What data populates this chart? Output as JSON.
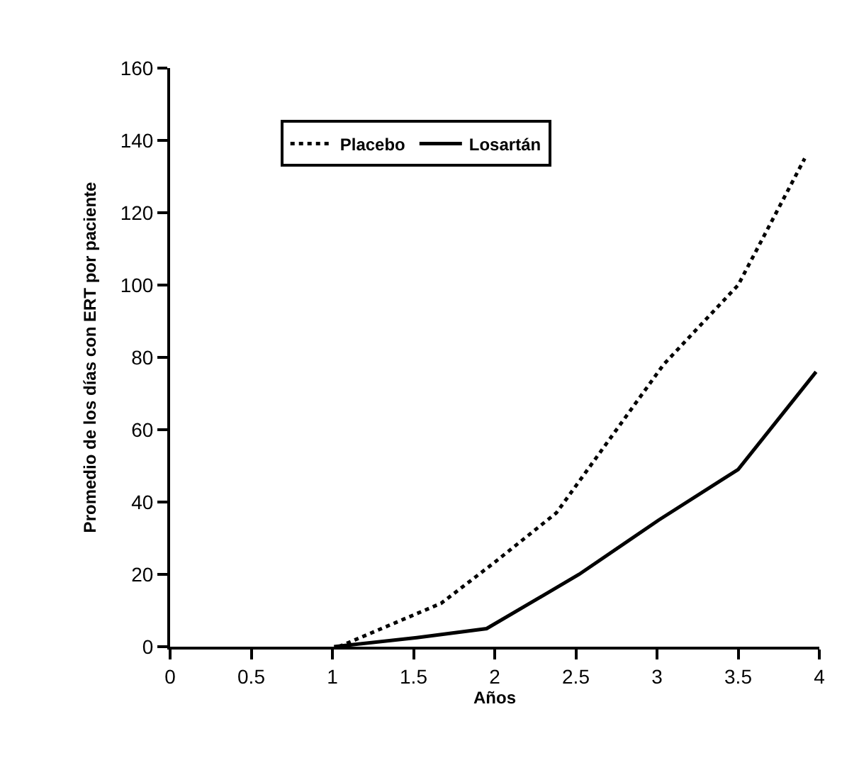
{
  "chart_data": {
    "type": "line",
    "xlabel": "Años",
    "ylabel": "Promedio de los días con ERT por paciente",
    "xlim": [
      0,
      4
    ],
    "xticks": [
      0,
      0.5,
      1,
      1.5,
      2,
      2.5,
      3,
      3.5,
      4
    ],
    "ylim": [
      0,
      160
    ],
    "yticks": [
      0,
      20,
      40,
      60,
      80,
      100,
      120,
      140,
      160
    ],
    "legend": "top left",
    "marker": "none",
    "series": [
      {
        "name": "Placebo",
        "color": "#000000",
        "line_style": "dotted",
        "x": [
          1.04,
          1.67,
          1.99,
          2.38,
          3.04,
          3.5,
          3.91
        ],
        "values": [
          0,
          12,
          23,
          37,
          78,
          100,
          135
        ]
      },
      {
        "name": "Losartán",
        "color": "#000000",
        "line_style": "solid",
        "x": [
          1.01,
          1.52,
          1.95,
          2.52,
          3.01,
          3.5,
          3.98
        ],
        "values": [
          0,
          2.5,
          5,
          20,
          35,
          49,
          76
        ]
      }
    ]
  }
}
